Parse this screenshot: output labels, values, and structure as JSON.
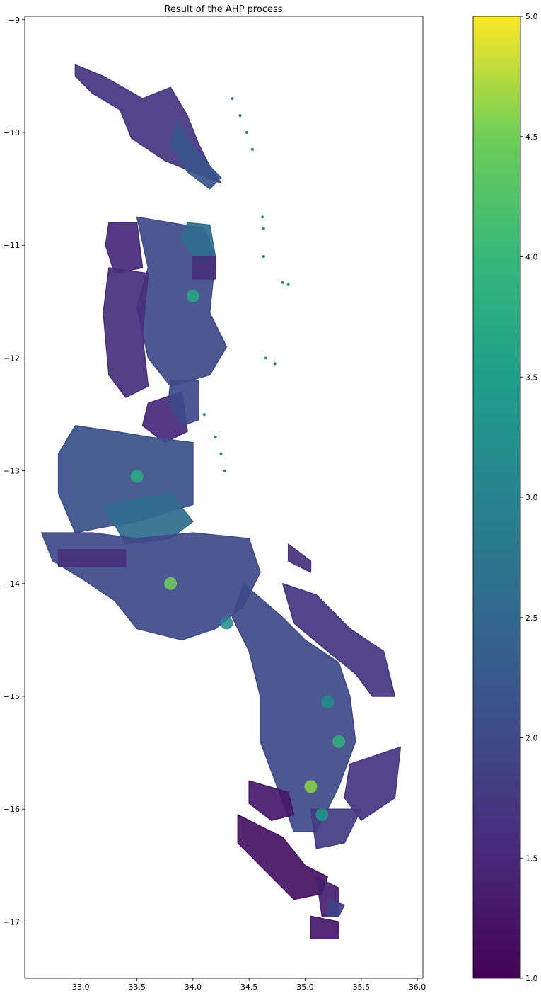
{
  "chart_data": {
    "type": "heatmap",
    "title": "Result of the AHP process",
    "xlabel": "",
    "ylabel": "",
    "xlim": [
      32.5,
      36.05
    ],
    "ylim": [
      -17.5,
      -8.97
    ],
    "xticks": [
      33.0,
      33.5,
      34.0,
      34.5,
      35.0,
      35.5,
      36.0
    ],
    "xtick_labels": [
      "33.0",
      "33.5",
      "34.0",
      "34.5",
      "35.0",
      "35.5",
      "36.0"
    ],
    "yticks": [
      -9,
      -10,
      -11,
      -12,
      -13,
      -14,
      -15,
      -16,
      -17
    ],
    "ytick_labels": [
      "−9",
      "−10",
      "−11",
      "−12",
      "−13",
      "−14",
      "−15",
      "−16",
      "−17"
    ],
    "grid": false,
    "colormap": "viridis",
    "colorbar": {
      "range": [
        1.0,
        5.0
      ],
      "ticks": [
        1.0,
        1.5,
        2.0,
        2.5,
        3.0,
        3.5,
        4.0,
        4.5,
        5.0
      ],
      "tick_labels": [
        "1.0",
        "1.5",
        "2.0",
        "2.5",
        "3.0",
        "3.5",
        "4.0",
        "4.5",
        "5.0"
      ]
    },
    "regions": [
      {
        "value": 1.7,
        "outline": [
          [
            32.95,
            -9.4
          ],
          [
            33.2,
            -9.5
          ],
          [
            33.55,
            -9.7
          ],
          [
            33.8,
            -9.6
          ],
          [
            33.95,
            -9.85
          ],
          [
            34.05,
            -10.1
          ],
          [
            34.15,
            -10.3
          ],
          [
            34.25,
            -10.45
          ],
          [
            33.75,
            -10.25
          ],
          [
            33.45,
            -10.05
          ],
          [
            33.35,
            -9.8
          ],
          [
            33.1,
            -9.65
          ],
          [
            32.95,
            -9.5
          ]
        ]
      },
      {
        "value": 2.2,
        "outline": [
          [
            33.85,
            -9.9
          ],
          [
            34.05,
            -10.2
          ],
          [
            34.25,
            -10.4
          ],
          [
            34.15,
            -10.5
          ],
          [
            33.95,
            -10.35
          ],
          [
            33.8,
            -10.1
          ]
        ]
      },
      {
        "value": 1.5,
        "outline": [
          [
            33.25,
            -10.8
          ],
          [
            33.5,
            -10.8
          ],
          [
            33.55,
            -11.2
          ],
          [
            33.3,
            -11.25
          ],
          [
            33.22,
            -11.0
          ]
        ]
      },
      {
        "value": 2.0,
        "outline": [
          [
            33.5,
            -10.75
          ],
          [
            34.1,
            -10.85
          ],
          [
            34.2,
            -11.1
          ],
          [
            34.15,
            -11.6
          ],
          [
            34.3,
            -11.9
          ],
          [
            34.15,
            -12.15
          ],
          [
            33.8,
            -12.25
          ],
          [
            33.6,
            -12.0
          ],
          [
            33.5,
            -11.55
          ],
          [
            33.6,
            -11.2
          ]
        ]
      },
      {
        "value": 2.6,
        "outline": [
          [
            33.95,
            -10.8
          ],
          [
            34.15,
            -10.82
          ],
          [
            34.2,
            -11.1
          ],
          [
            34.0,
            -11.1
          ],
          [
            33.9,
            -10.95
          ]
        ]
      },
      {
        "value": 1.6,
        "outline": [
          [
            33.25,
            -11.2
          ],
          [
            33.6,
            -11.25
          ],
          [
            33.55,
            -11.8
          ],
          [
            33.6,
            -12.25
          ],
          [
            33.4,
            -12.35
          ],
          [
            33.25,
            -12.15
          ],
          [
            33.2,
            -11.6
          ]
        ]
      },
      {
        "value": 1.6,
        "outline": [
          [
            34.0,
            -11.1
          ],
          [
            34.2,
            -11.1
          ],
          [
            34.2,
            -11.3
          ],
          [
            34.0,
            -11.3
          ]
        ]
      },
      {
        "value": 1.5,
        "outline": [
          [
            33.6,
            -12.4
          ],
          [
            33.9,
            -12.3
          ],
          [
            33.95,
            -12.65
          ],
          [
            33.75,
            -12.75
          ],
          [
            33.55,
            -12.6
          ]
        ]
      },
      {
        "value": 2.0,
        "outline": [
          [
            33.8,
            -12.2
          ],
          [
            34.05,
            -12.2
          ],
          [
            34.05,
            -12.55
          ],
          [
            33.9,
            -12.6
          ],
          [
            33.78,
            -12.4
          ]
        ]
      },
      {
        "value": 2.1,
        "outline": [
          [
            32.95,
            -12.6
          ],
          [
            33.3,
            -12.65
          ],
          [
            33.6,
            -12.7
          ],
          [
            34.0,
            -12.75
          ],
          [
            34.0,
            -13.3
          ],
          [
            33.5,
            -13.45
          ],
          [
            33.2,
            -13.5
          ],
          [
            32.95,
            -13.55
          ],
          [
            32.8,
            -13.2
          ],
          [
            32.8,
            -12.85
          ]
        ]
      },
      {
        "value": 2.6,
        "outline": [
          [
            33.2,
            -13.3
          ],
          [
            33.8,
            -13.2
          ],
          [
            34.0,
            -13.45
          ],
          [
            33.8,
            -13.6
          ],
          [
            33.4,
            -13.65
          ]
        ]
      },
      {
        "value": 2.0,
        "outline": [
          [
            32.65,
            -13.55
          ],
          [
            33.1,
            -13.55
          ],
          [
            33.5,
            -13.6
          ],
          [
            34.0,
            -13.55
          ],
          [
            34.5,
            -13.6
          ],
          [
            34.6,
            -13.9
          ],
          [
            34.45,
            -14.2
          ],
          [
            34.2,
            -14.4
          ],
          [
            33.9,
            -14.5
          ],
          [
            33.5,
            -14.4
          ],
          [
            33.3,
            -14.15
          ],
          [
            33.0,
            -13.95
          ],
          [
            32.75,
            -13.8
          ]
        ]
      },
      {
        "value": 1.6,
        "outline": [
          [
            32.8,
            -13.7
          ],
          [
            33.4,
            -13.7
          ],
          [
            33.4,
            -13.85
          ],
          [
            32.8,
            -13.85
          ]
        ]
      },
      {
        "value": 2.0,
        "outline": [
          [
            34.45,
            -14.0
          ],
          [
            34.8,
            -14.3
          ],
          [
            35.0,
            -14.5
          ],
          [
            35.3,
            -14.7
          ],
          [
            35.4,
            -15.0
          ],
          [
            35.45,
            -15.4
          ],
          [
            35.3,
            -15.8
          ],
          [
            35.1,
            -16.2
          ],
          [
            34.9,
            -16.2
          ],
          [
            34.75,
            -15.8
          ],
          [
            34.6,
            -15.4
          ],
          [
            34.6,
            -15.0
          ],
          [
            34.5,
            -14.6
          ],
          [
            34.35,
            -14.3
          ]
        ]
      },
      {
        "value": 1.7,
        "outline": [
          [
            34.8,
            -14.0
          ],
          [
            35.1,
            -14.1
          ],
          [
            35.4,
            -14.4
          ],
          [
            35.7,
            -14.6
          ],
          [
            35.8,
            -15.0
          ],
          [
            35.6,
            -15.0
          ],
          [
            35.45,
            -14.8
          ],
          [
            35.2,
            -14.6
          ],
          [
            34.9,
            -14.35
          ]
        ]
      },
      {
        "value": 1.7,
        "outline": [
          [
            35.4,
            -15.6
          ],
          [
            35.85,
            -15.45
          ],
          [
            35.8,
            -15.9
          ],
          [
            35.5,
            -16.1
          ],
          [
            35.35,
            -15.9
          ]
        ]
      },
      {
        "value": 1.8,
        "outline": [
          [
            35.05,
            -16.0
          ],
          [
            35.5,
            -16.0
          ],
          [
            35.35,
            -16.3
          ],
          [
            35.1,
            -16.35
          ]
        ]
      },
      {
        "value": 1.3,
        "outline": [
          [
            34.5,
            -15.75
          ],
          [
            34.85,
            -15.85
          ],
          [
            34.9,
            -16.05
          ],
          [
            34.7,
            -16.1
          ],
          [
            34.5,
            -15.95
          ]
        ]
      },
      {
        "value": 1.2,
        "outline": [
          [
            34.4,
            -16.05
          ],
          [
            34.8,
            -16.25
          ],
          [
            35.0,
            -16.5
          ],
          [
            35.2,
            -16.6
          ],
          [
            35.15,
            -16.75
          ],
          [
            34.9,
            -16.8
          ],
          [
            34.65,
            -16.55
          ],
          [
            34.4,
            -16.3
          ]
        ]
      },
      {
        "value": 1.4,
        "outline": [
          [
            35.1,
            -16.6
          ],
          [
            35.3,
            -16.7
          ],
          [
            35.3,
            -16.95
          ],
          [
            35.15,
            -16.95
          ]
        ]
      },
      {
        "value": 1.3,
        "outline": [
          [
            35.05,
            -16.95
          ],
          [
            35.3,
            -17.0
          ],
          [
            35.3,
            -17.15
          ],
          [
            35.05,
            -17.15
          ]
        ]
      },
      {
        "value": 1.9,
        "outline": [
          [
            35.2,
            -16.8
          ],
          [
            35.35,
            -16.85
          ],
          [
            35.3,
            -16.95
          ],
          [
            35.2,
            -16.95
          ]
        ]
      },
      {
        "value": 1.6,
        "outline": [
          [
            34.85,
            -13.65
          ],
          [
            35.05,
            -13.8
          ],
          [
            35.05,
            -13.9
          ],
          [
            34.85,
            -13.8
          ]
        ]
      }
    ],
    "hotspots": [
      {
        "x": 33.8,
        "y": -14.0,
        "value": 4.5
      },
      {
        "x": 35.05,
        "y": -15.8,
        "value": 4.6
      },
      {
        "x": 33.5,
        "y": -13.05,
        "value": 3.8
      },
      {
        "x": 34.0,
        "y": -11.45,
        "value": 3.7
      },
      {
        "x": 35.3,
        "y": -15.4,
        "value": 3.9
      },
      {
        "x": 35.15,
        "y": -16.05,
        "value": 3.4
      },
      {
        "x": 35.2,
        "y": -15.05,
        "value": 3.2
      },
      {
        "x": 34.3,
        "y": -14.35,
        "value": 3.1
      }
    ],
    "scatter_points": [
      {
        "x": 34.35,
        "y": -9.7,
        "value": 2.9
      },
      {
        "x": 34.42,
        "y": -9.85,
        "value": 2.9
      },
      {
        "x": 34.48,
        "y": -10.0,
        "value": 2.9
      },
      {
        "x": 34.53,
        "y": -10.15,
        "value": 2.9
      },
      {
        "x": 34.62,
        "y": -10.75,
        "value": 2.9
      },
      {
        "x": 34.63,
        "y": -10.85,
        "value": 2.9
      },
      {
        "x": 34.63,
        "y": -11.1,
        "value": 2.9
      },
      {
        "x": 34.8,
        "y": -11.33,
        "value": 2.9
      },
      {
        "x": 34.85,
        "y": -11.35,
        "value": 2.9
      },
      {
        "x": 34.65,
        "y": -12.0,
        "value": 2.9
      },
      {
        "x": 34.73,
        "y": -12.05,
        "value": 2.3
      },
      {
        "x": 34.1,
        "y": -12.5,
        "value": 2.9
      },
      {
        "x": 34.2,
        "y": -12.7,
        "value": 2.9
      },
      {
        "x": 34.25,
        "y": -12.85,
        "value": 2.9
      },
      {
        "x": 34.28,
        "y": -13.0,
        "value": 2.9
      }
    ]
  }
}
